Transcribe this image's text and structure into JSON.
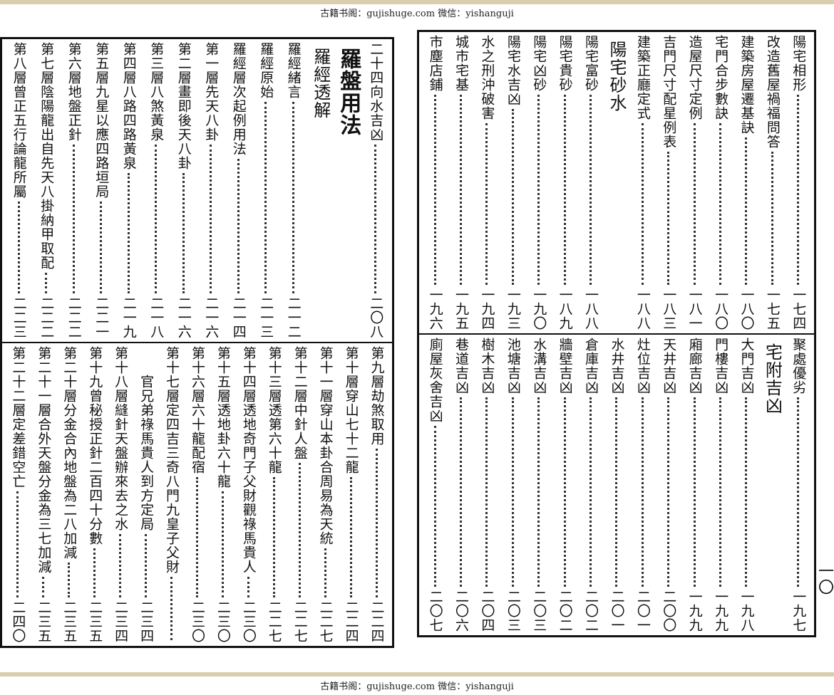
{
  "header": {
    "text": "古籍书阁：gujishuge.com 微信：yishanguji"
  },
  "footer": {
    "text": "古籍书阁：gujishuge.com 微信：yishanguji"
  },
  "pages": [
    {
      "sections": [
        {
          "entries": [
            {
              "title": "二十四向水吉凶",
              "page": "二〇八"
            },
            {
              "heading": "羅盤用法",
              "major": true
            },
            {
              "heading": "羅經透解"
            },
            {
              "title": "羅經緒言",
              "page": "二一二"
            },
            {
              "title": "羅經原始",
              "page": "二一三"
            },
            {
              "title": "羅經層次起例用法",
              "page": "二一四"
            },
            {
              "title": "第一層先天八卦",
              "page": "二一六"
            },
            {
              "title": "第二層畫即後天八卦",
              "page": "二一六"
            },
            {
              "title": "第三層八煞黃泉",
              "page": "二一八"
            },
            {
              "title": "第四層八路四路黃泉",
              "page": "二一九"
            },
            {
              "title": "第五層九星以應四路垣局",
              "page": "二二一"
            },
            {
              "title": "第六層地盤正針",
              "page": "二二二"
            },
            {
              "title": "第七層陰陽龍出自先天八掛納甲取配",
              "page": "二二二"
            },
            {
              "title": "第八層曾正五行論龍所屬",
              "page": "二二三"
            }
          ]
        },
        {
          "entries": [
            {
              "title": "第九層劫煞取用",
              "page": "二二四"
            },
            {
              "title": "第十層穿山七十二龍",
              "page": "二二四"
            },
            {
              "title": "第十一層穿山本卦合周易為天統",
              "page": "二二七"
            },
            {
              "title": "第十二層中針人盤",
              "page": "二二七"
            },
            {
              "title": "第十三層透第六十龍",
              "page": "二二七"
            },
            {
              "title": "第十四層透地奇門子父財觀祿馬貴人",
              "page": "二三〇"
            },
            {
              "title": "第十五層透地卦六十龍",
              "page": "二三〇"
            },
            {
              "title": "第十六層六十龍配宿",
              "page": "二三〇"
            },
            {
              "title": "第十七層定四吉三奇八門九皇子父財"
            },
            {
              "title": "官兄弟祿馬貴人到方定局",
              "page": "二三四",
              "indent": true
            },
            {
              "title": "第十八層縫針天盤辦來去之水",
              "page": "二三四"
            },
            {
              "title": "第十九曾秘授正針二百四十分數",
              "page": "二三五"
            },
            {
              "title": "第二十層分金合內地盤為二八加減",
              "page": "二三五"
            },
            {
              "title": "第二十一層合外天盤分金為三七加減",
              "page": "二三五"
            },
            {
              "title": "第二十二層定差錯空亡",
              "page": "二四〇"
            }
          ]
        }
      ]
    },
    {
      "sections": [
        {
          "entries": [
            {
              "title": "陽宅相形",
              "page": "一七四"
            },
            {
              "title": "改造舊屋禍福問答",
              "page": "一七五"
            },
            {
              "title": "建築房屋遷基訣",
              "page": "一八〇"
            },
            {
              "title": "宅門合步數訣",
              "page": "一八〇"
            },
            {
              "title": "造屋尺寸定例",
              "page": "一八一"
            },
            {
              "title": "吉門尺寸配星例表",
              "page": "一八三"
            },
            {
              "title": "建築正廳定式",
              "page": "一八八"
            },
            {
              "heading": "陽宅砂水"
            },
            {
              "title": "陽宅富砂",
              "page": "一八八"
            },
            {
              "title": "陽宅貴砂",
              "page": "一八九"
            },
            {
              "title": "陽宅凶砂",
              "page": "一九〇"
            },
            {
              "title": "陽宅水吉凶",
              "page": "一九三"
            },
            {
              "title": "水之刑沖破害",
              "page": "一九四"
            },
            {
              "title": "城市宅基",
              "page": "一九五"
            },
            {
              "title": "市塵店鋪",
              "page": "一九六"
            }
          ]
        },
        {
          "entries": [
            {
              "title": "聚處優劣",
              "page": "一九七"
            },
            {
              "heading": "宅附吉凶"
            },
            {
              "title": "大門吉凶",
              "page": "一九八"
            },
            {
              "title": "門樓吉凶",
              "page": "一九九"
            },
            {
              "title": "廂廊吉凶",
              "page": "一九九"
            },
            {
              "title": "天井吉凶",
              "page": "二〇〇"
            },
            {
              "title": "灶位吉凶",
              "page": "二〇一"
            },
            {
              "title": "水井吉凶",
              "page": "二〇一"
            },
            {
              "title": "倉庫吉凶",
              "page": "二〇二"
            },
            {
              "title": "牆壁吉凶",
              "page": "二〇二"
            },
            {
              "title": "水溝吉凶",
              "page": "二〇三"
            },
            {
              "title": "池塘吉凶",
              "page": "二〇三"
            },
            {
              "title": "樹木吉凶",
              "page": "二〇四"
            },
            {
              "title": "巷道吉凶",
              "page": "二〇六"
            },
            {
              "title": "廁屋灰舍吉凶",
              "page": "二〇七"
            }
          ]
        }
      ],
      "page_number": "一〇"
    }
  ]
}
